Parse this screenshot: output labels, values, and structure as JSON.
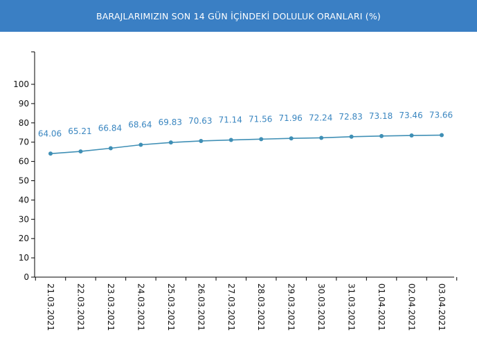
{
  "header": {
    "title": "BARAJLARIMIZIN SON 14 GÜN İÇİNDEKİ DOLULUK ORANLARI (%)"
  },
  "colors": {
    "header_bg": "#3a7fc4",
    "series": "#3f8fb5",
    "label": "#3a86c0",
    "axis": "#000000"
  },
  "chart_data": {
    "type": "line",
    "title": "BARAJLARIMIZIN SON 14 GÜN İÇİNDEKİ DOLULUK ORANLARI (%)",
    "xlabel": "",
    "ylabel": "",
    "categories": [
      "21.03.2021",
      "22.03.2021",
      "23.03.2021",
      "24.03.2021",
      "25.03.2021",
      "26.03.2021",
      "27.03.2021",
      "28.03.2021",
      "29.03.2021",
      "30.03.2021",
      "31.03.2021",
      "01.04.2021",
      "02.04.2021",
      "03.04.2021"
    ],
    "series": [
      {
        "values": [
          64.06,
          65.21,
          66.84,
          68.64,
          69.83,
          70.63,
          71.14,
          71.56,
          71.96,
          72.24,
          72.83,
          73.18,
          73.46,
          73.66
        ]
      }
    ],
    "value_labels": [
      "64.06",
      "65.21",
      "66.84",
      "68.64",
      "69.83",
      "70.63",
      "71.14",
      "71.56",
      "71.96",
      "72.24",
      "72.83",
      "73.18",
      "73.46",
      "73.66"
    ],
    "yticks": [
      0,
      10,
      20,
      30,
      40,
      50,
      60,
      70,
      80,
      90,
      100
    ],
    "ylim": [
      0,
      115
    ],
    "grid": false,
    "legend": "none"
  }
}
